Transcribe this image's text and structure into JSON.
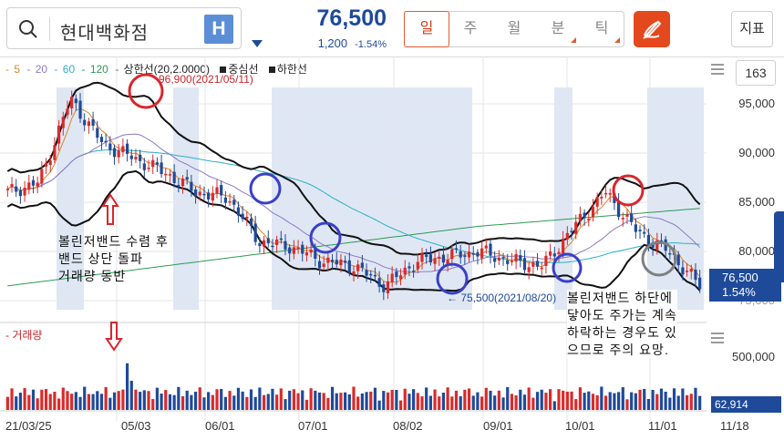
{
  "search": {
    "value": "현대백화점",
    "icon": "search-icon",
    "h_button": "H"
  },
  "quote": {
    "price": "76,500",
    "change": "1,200",
    "change_pct": "-1.54%",
    "color": "#1f4a9a"
  },
  "periods": [
    "일",
    "주",
    "월",
    "분",
    "틱"
  ],
  "active_period": "일",
  "index_button": "지표",
  "legend": {
    "ma5": "5",
    "ma20": "20",
    "ma60": "60",
    "ma120": "120",
    "upper": "상한선(20,2.0000)",
    "mid": "중심선",
    "lower": "하한선",
    "sep": "-",
    "colors": {
      "ma5": "#e0842a",
      "ma20": "#8c7cc4",
      "ma60": "#2db0c8",
      "ma120": "#2e9a52"
    }
  },
  "bar_count": "163",
  "y_axis": [
    "95,000",
    "90,000",
    "85,000",
    "80,000",
    "75,000"
  ],
  "volume": {
    "label": "거래량",
    "axis": "500,000",
    "last": "62,914"
  },
  "x_axis": [
    "21/03/25",
    "05/03",
    "06/01",
    "07/01",
    "08/02",
    "09/01",
    "10/01",
    "11/01",
    "11/18"
  ],
  "last_price_box": {
    "price": "76,500",
    "pct": "1.54%"
  },
  "max_label": "96,900(2021/05/11)",
  "min_label": "← 75,500(2021/08/20)",
  "annotations": {
    "left": [
      "볼린저밴드 수렴 후",
      "밴드 상단 돌파",
      "거래량 동반"
    ],
    "right": [
      "볼린저밴드 하단에",
      "닿아도 주가는 계속",
      "하락하는 경우도 있",
      "으므로 주의 요망."
    ]
  },
  "chart_data": {
    "type": "candlestick",
    "title": "",
    "x": [
      "21/03/25",
      "05/03",
      "06/01",
      "07/01",
      "08/02",
      "09/01",
      "10/01",
      "11/01",
      "11/18"
    ],
    "close_approx": [
      86000,
      87000,
      95500,
      91000,
      89500,
      88000,
      86000,
      85500,
      81000,
      80500,
      79000,
      78500,
      76500,
      79000,
      79500,
      80000,
      79000,
      78500,
      82500,
      86000,
      82000,
      80000,
      76500
    ],
    "ylim": [
      72000,
      98000
    ],
    "y_ticks": [
      75000,
      80000,
      85000,
      90000,
      95000
    ],
    "high": 96900,
    "low": 75500,
    "last": 76500,
    "volume_last": 62914,
    "volume_tick": 500000
  }
}
